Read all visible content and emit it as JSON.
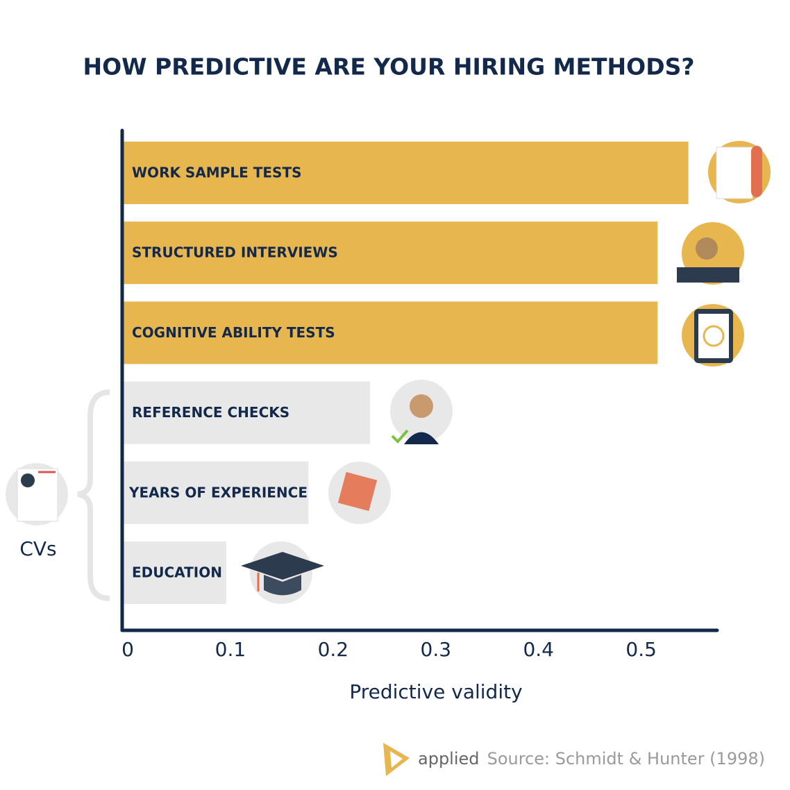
{
  "chart_data": {
    "type": "bar",
    "orientation": "horizontal",
    "title": "HOW PREDICTIVE ARE YOUR HIRING METHODS?",
    "categories": [
      "WORK SAMPLE TESTS",
      "STRUCTURED INTERVIEWS",
      "COGNITIVE ABILITY TESTS",
      "REFERENCE CHECKS",
      "YEARS OF EXPERIENCE",
      "EDUCATION"
    ],
    "values": [
      0.55,
      0.52,
      0.52,
      0.24,
      0.18,
      0.1
    ],
    "colors": [
      "#e8b64e",
      "#e8b64e",
      "#e8b64e",
      "#e8e8e8",
      "#e8e8e8",
      "#e8e8e8"
    ],
    "xlim": [
      0,
      0.58
    ],
    "xticks": [
      0,
      0.1,
      0.2,
      0.3,
      0.4,
      0.5
    ],
    "xlabel": "Predictive validity",
    "group_label": "CVs",
    "brand": "applied",
    "source": "Source: Schmidt & Hunter (1998)"
  }
}
